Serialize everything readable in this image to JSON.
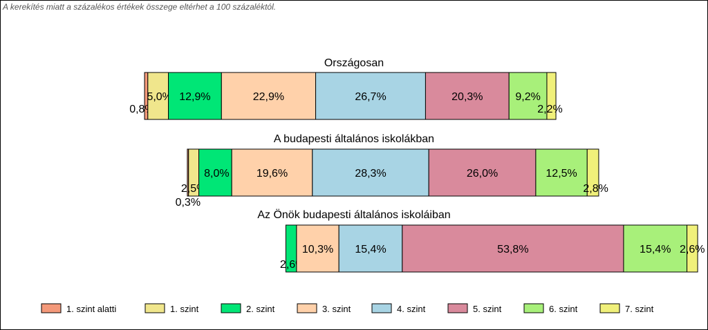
{
  "note": "A kerekítés miatt a  százalékos értékek összege eltérhet a 100 százaléktól.",
  "levels": [
    "1. szint alatti",
    "1. szint",
    "2. szint",
    "3. szint",
    "4. szint",
    "5. szint",
    "6. szint",
    "7. szint"
  ],
  "colors": [
    "#f4997a",
    "#f0e68c",
    "#00e676",
    "#ffd1aa",
    "#a8d4e4",
    "#d98a9c",
    "#a8f07a",
    "#f0f07a"
  ],
  "chart_data": {
    "type": "bar",
    "orientation": "horizontal",
    "stacked": true,
    "legend_position": "bottom",
    "grid": false,
    "series": [
      {
        "name": "Országosan",
        "values": [
          0.8,
          5.0,
          12.9,
          22.9,
          26.7,
          20.3,
          9.2,
          2.2
        ],
        "labels": [
          "0,8%",
          "5,0%",
          "12,9%",
          "22,9%",
          "26,7%",
          "20,3%",
          "9,2%",
          "2,2%"
        ]
      },
      {
        "name": "A budapesti általános iskolákban",
        "values": [
          0.3,
          2.5,
          8.0,
          19.6,
          28.3,
          26.0,
          12.5,
          2.8
        ],
        "labels": [
          "0,3%",
          "2,5%",
          "8,0%",
          "19,6%",
          "28,3%",
          "26,0%",
          "12,5%",
          "2,8%"
        ]
      },
      {
        "name": "Az Önök budapesti általános iskoláiban",
        "values": [
          0,
          0,
          2.6,
          10.3,
          15.4,
          53.8,
          15.4,
          2.6
        ],
        "labels": [
          "",
          "",
          "2,6%",
          "10,3%",
          "15,4%",
          "53,8%",
          "15,4%",
          "2,6%"
        ]
      }
    ]
  }
}
